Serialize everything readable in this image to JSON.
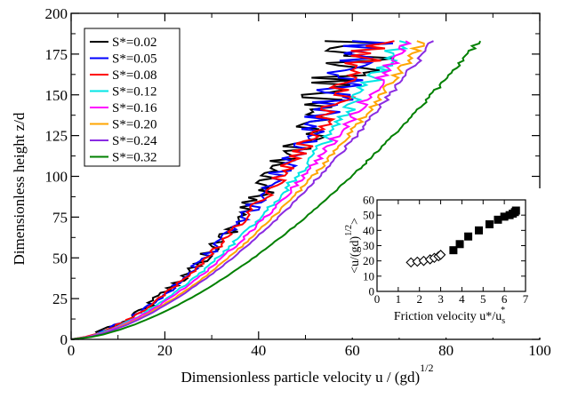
{
  "chart_data": [
    {
      "type": "line",
      "xlabel": "Dimensionless particle velocity u / (gd)",
      "xlabel_superscript": "1/2",
      "ylabel": "Dimensionless height z/d",
      "xlim": [
        0,
        100
      ],
      "ylim": [
        0,
        200
      ],
      "x_ticks": [
        0,
        20,
        40,
        60,
        80,
        100
      ],
      "y_ticks": [
        0,
        25,
        50,
        75,
        100,
        125,
        150,
        175,
        200
      ],
      "grid": false,
      "legend_position": "top-left",
      "series": [
        {
          "name": "S*=0.02",
          "color": "#000000",
          "top_velocity": 63,
          "noise": 7.0
        },
        {
          "name": "S*=0.05",
          "color": "#0000ff",
          "top_velocity": 64,
          "noise": 5.0
        },
        {
          "name": "S*=0.08",
          "color": "#ff0000",
          "top_velocity": 65,
          "noise": 3.5
        },
        {
          "name": "S*=0.12",
          "color": "#00e5e5",
          "top_velocity": 70,
          "noise": 2.0
        },
        {
          "name": "S*=0.16",
          "color": "#ff00ff",
          "top_velocity": 72,
          "noise": 1.5
        },
        {
          "name": "S*=0.20",
          "color": "#ffa500",
          "top_velocity": 75,
          "noise": 1.0
        },
        {
          "name": "S*=0.24",
          "color": "#8a2be2",
          "top_velocity": 77,
          "noise": 0.7
        },
        {
          "name": "S*=0.32",
          "color": "#008000",
          "top_velocity": 87,
          "noise": 0.5
        }
      ]
    },
    {
      "type": "scatter",
      "xlabel": "Friction velocity u*/u",
      "xlabel_subscript": "s",
      "xlabel_superscript": "*",
      "ylabel": "<u/(gd)",
      "ylabel_superscript": "1/2",
      "ylabel_suffix": ">",
      "xlim": [
        0,
        7
      ],
      "ylim": [
        0,
        60
      ],
      "x_ticks": [
        0,
        1,
        2,
        3,
        4,
        5,
        6,
        7
      ],
      "y_ticks": [
        0,
        10,
        20,
        30,
        40,
        50,
        60
      ],
      "series": [
        {
          "name": "open-diamonds",
          "marker": "diamond-open",
          "x": [
            1.6,
            1.9,
            2.2,
            2.5,
            2.7,
            2.9,
            3.0
          ],
          "y": [
            19,
            19.5,
            20,
            21,
            22,
            23,
            24
          ]
        },
        {
          "name": "filled-squares",
          "marker": "square-filled",
          "x": [
            3.6,
            3.9,
            4.3,
            4.8,
            5.3,
            5.7,
            6.0,
            6.25,
            6.4,
            6.5,
            6.55
          ],
          "y": [
            27,
            31,
            36,
            40,
            44,
            47,
            49,
            50,
            51,
            52,
            53
          ]
        }
      ]
    }
  ]
}
